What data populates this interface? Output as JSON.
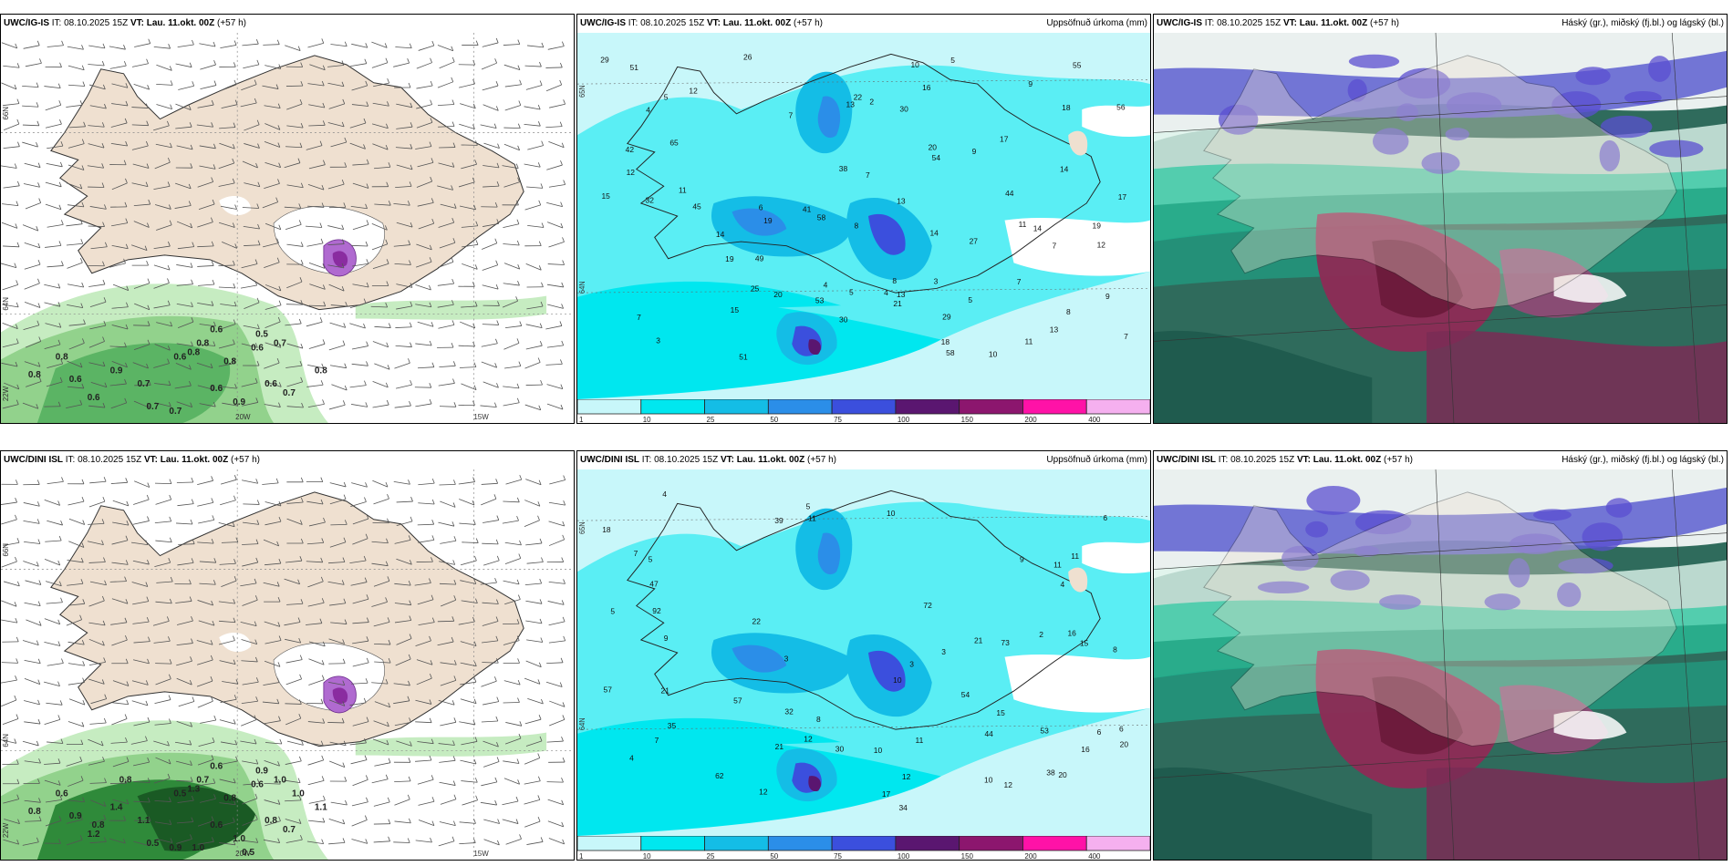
{
  "panels": [
    {
      "id": "p1",
      "model": "UWC/IG-IS",
      "it_label": "IT:",
      "it_value": "08.10.2025 15Z",
      "vt_label": "VT:",
      "vt_value": "Lau. 11.okt. 00Z",
      "lead": "(+57 h)",
      "right_title": "",
      "kind": "wind-precip",
      "axis_labels": [
        "20W",
        "15W",
        "66N",
        "64N",
        "22W"
      ],
      "values": [
        "0.6",
        "0.5",
        "0.7",
        "0.8",
        "0.6",
        "0.8",
        "0.6",
        "0.8",
        "0.9",
        "0.7",
        "0.6",
        "0.8",
        "0.7",
        "0.6",
        "0.9",
        "0.7",
        "0.6",
        "0.8",
        "0.6",
        "0.7",
        "0.8"
      ]
    },
    {
      "id": "p2",
      "model": "UWC/IG-IS",
      "it_label": "IT:",
      "it_value": "08.10.2025 15Z",
      "vt_label": "VT:",
      "vt_value": "Lau. 11.okt. 00Z",
      "lead": "(+57 h)",
      "right_title": "Uppsöfnuð úrkoma (mm)",
      "kind": "accum",
      "axis_labels": [
        "65N",
        "64N"
      ],
      "values": [
        "8",
        "9",
        "8",
        "10",
        "5",
        "9",
        "10",
        "7",
        "12",
        "29",
        "11",
        "6",
        "5",
        "4",
        "4",
        "3",
        "13",
        "18",
        "20",
        "26",
        "56",
        "58",
        "49",
        "51",
        "53",
        "14",
        "22",
        "12",
        "19",
        "21",
        "13",
        "17",
        "20",
        "14",
        "45",
        "29",
        "38",
        "51",
        "42",
        "41",
        "30",
        "32",
        "17",
        "58",
        "30",
        "55",
        "65",
        "5",
        "5",
        "7",
        "8",
        "11",
        "13",
        "14",
        "19",
        "19",
        "9",
        "7",
        "7",
        "11",
        "44",
        "54",
        "4",
        "2",
        "3",
        "12",
        "7",
        "13",
        "15",
        "18",
        "16",
        "25",
        "27",
        "15",
        "14",
        "7"
      ],
      "colorbar": {
        "labels": [
          "1",
          "10",
          "25",
          "50",
          "75",
          "100",
          "150",
          "200",
          "400"
        ],
        "colors": [
          "#c8f7fa",
          "#00e7ef",
          "#14bde6",
          "#2b8ee8",
          "#3b4fdd",
          "#5a1670",
          "#8c166e",
          "#ff12a7",
          "#f5b0ef"
        ]
      }
    },
    {
      "id": "p3",
      "model": "UWC/IG-IS",
      "it_label": "IT:",
      "it_value": "08.10.2025 15Z",
      "vt_label": "VT:",
      "vt_value": "Lau. 11.okt. 00Z",
      "lead": "(+57 h)",
      "right_title": "Háský (gr.), miðský (fj.bl.) og lágský (bl.)",
      "kind": "clouds"
    },
    {
      "id": "p4",
      "model": "UWC/DINI ISL",
      "it_label": "IT:",
      "it_value": "08.10.2025 15Z",
      "vt_label": "VT:",
      "vt_value": "Lau. 11.okt. 00Z",
      "lead": "(+57 h)",
      "right_title": "",
      "kind": "wind-precip",
      "axis_labels": [
        "20W",
        "15W",
        "66N",
        "64N",
        "22W"
      ],
      "values": [
        "0.6",
        "0.9",
        "1.0",
        "0.7",
        "0.5",
        "0.8",
        "0.6",
        "1.3",
        "1.4",
        "1.1",
        "0.9",
        "0.8",
        "0.7",
        "1.2",
        "1.0",
        "0.5",
        "0.8",
        "0.6",
        "0.6",
        "0.9",
        "1.1",
        "0.8",
        "1.0",
        "0.5",
        "0.8",
        "1.0"
      ]
    },
    {
      "id": "p5",
      "model": "UWC/DINI ISL",
      "it_label": "IT:",
      "it_value": "08.10.2025 15Z",
      "vt_label": "VT:",
      "vt_value": "Lau. 11.okt. 00Z",
      "lead": "(+57 h)",
      "right_title": "Uppsöfnuð úrkoma (mm)",
      "kind": "accum",
      "axis_labels": [
        "65N",
        "64N"
      ],
      "values": [
        "3",
        "6",
        "10",
        "9",
        "11",
        "6",
        "5",
        "7",
        "12",
        "38",
        "22",
        "4",
        "3",
        "5",
        "10",
        "8",
        "21",
        "15",
        "18",
        "34",
        "72",
        "53",
        "12",
        "20",
        "15",
        "57",
        "39",
        "47",
        "73",
        "57",
        "62",
        "35",
        "32",
        "30",
        "44",
        "54",
        "92",
        "20",
        "21",
        "17",
        "16",
        "3",
        "4",
        "7",
        "6",
        "5",
        "11",
        "12",
        "12",
        "10",
        "11",
        "11",
        "8",
        "9",
        "4",
        "2",
        "10",
        "16",
        "21"
      ],
      "colorbar": {
        "labels": [
          "1",
          "10",
          "25",
          "50",
          "75",
          "100",
          "150",
          "200",
          "400"
        ],
        "colors": [
          "#c8f7fa",
          "#00e7ef",
          "#14bde6",
          "#2b8ee8",
          "#3b4fdd",
          "#5a1670",
          "#8c166e",
          "#ff12a7",
          "#f5b0ef"
        ]
      }
    },
    {
      "id": "p6",
      "model": "UWC/DINI ISL",
      "it_label": "IT:",
      "it_value": "08.10.2025 15Z",
      "vt_label": "VT:",
      "vt_value": "Lau. 11.okt. 00Z",
      "lead": "(+57 h)",
      "right_title": "Háský (gr.), miðský (fj.bl.) og lágský (bl.)",
      "kind": "clouds"
    }
  ]
}
